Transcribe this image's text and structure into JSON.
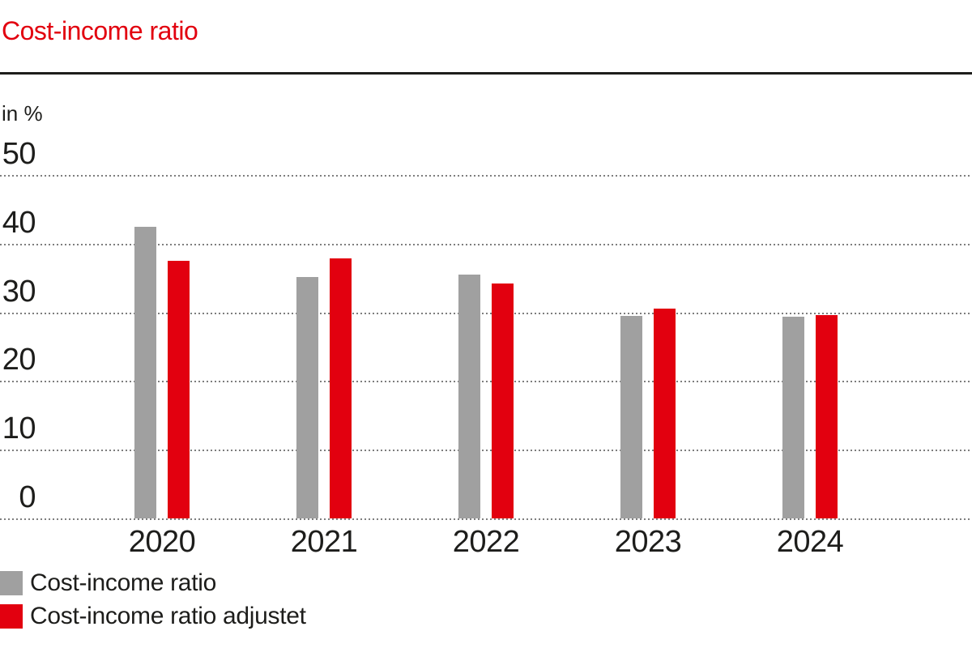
{
  "title": "Cost-income ratio",
  "unit_label": "in %",
  "colors": {
    "accent_red": "#e2000f",
    "series_gray": "#a0a0a0",
    "text_dark": "#1d1d1b",
    "gridline_gray": "#7e7e7e",
    "background": "#ffffff"
  },
  "chart_data": {
    "type": "bar",
    "title": "Cost-income ratio",
    "ylabel": "in %",
    "categories": [
      "2020",
      "2021",
      "2022",
      "2023",
      "2024"
    ],
    "series": [
      {
        "name": "Cost-income ratio",
        "color": "#a0a0a0",
        "values": [
          42.5,
          35.1,
          35.5,
          29.5,
          29.4
        ]
      },
      {
        "name": "Cost-income ratio adjustet",
        "color": "#e2000f",
        "values": [
          37.5,
          37.8,
          34.2,
          30.5,
          29.6
        ]
      }
    ],
    "y_ticks": [
      0,
      10,
      20,
      30,
      40,
      50
    ],
    "ylim": [
      0,
      55
    ],
    "grid": "horizontal-dotted",
    "legend_position": "bottom-left"
  }
}
